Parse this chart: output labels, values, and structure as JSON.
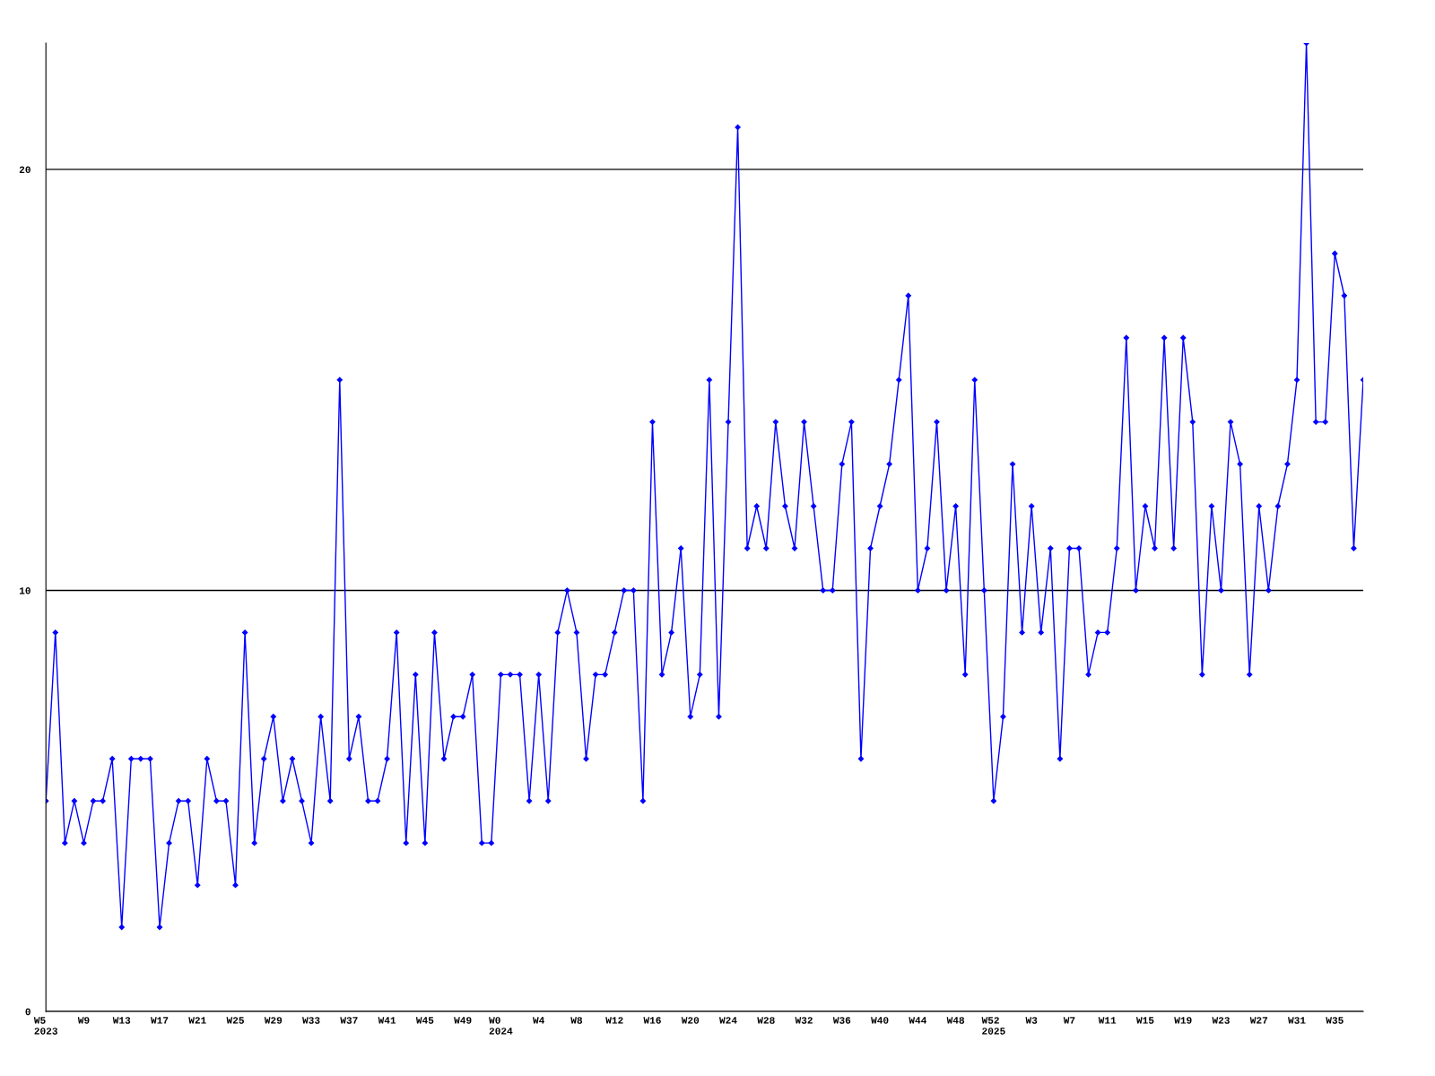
{
  "chart_data": {
    "type": "line",
    "categories": [
      "W5\n2023",
      null,
      null,
      null,
      "W9",
      null,
      null,
      null,
      "W13",
      null,
      null,
      null,
      "W17",
      null,
      null,
      null,
      "W21",
      null,
      null,
      null,
      "W25",
      null,
      null,
      null,
      "W29",
      null,
      null,
      null,
      "W33",
      null,
      null,
      null,
      "W37",
      null,
      null,
      null,
      "W41",
      null,
      null,
      null,
      "W45",
      null,
      null,
      null,
      "W49",
      null,
      null,
      null,
      "W0\n2024",
      null,
      null,
      null,
      "W4",
      null,
      null,
      null,
      "W8",
      null,
      null,
      null,
      "W12",
      null,
      null,
      null,
      "W16",
      null,
      null,
      null,
      "W20",
      null,
      null,
      null,
      "W24",
      null,
      null,
      null,
      "W28",
      null,
      null,
      null,
      "W32",
      null,
      null,
      null,
      "W36",
      null,
      null,
      null,
      "W40",
      null,
      null,
      null,
      "W44",
      null,
      null,
      null,
      "W48",
      null,
      null,
      null,
      "W52\n2025",
      null,
      null,
      null,
      "W3",
      null,
      null,
      null,
      "W7",
      null,
      null,
      null,
      "W11",
      null,
      null,
      null,
      "W15",
      null,
      null,
      null,
      "W19",
      null,
      null,
      null,
      "W23",
      null,
      null,
      null,
      "W27",
      null,
      null,
      null,
      "W31",
      null,
      null,
      null,
      "W35",
      null,
      null,
      null
    ],
    "series": [
      {
        "color": "#0000ff",
        "values": [
          5,
          9,
          4,
          5,
          4,
          5,
          5,
          6,
          2,
          6,
          6,
          6,
          2,
          4,
          5,
          5,
          3,
          6,
          5,
          5,
          3,
          9,
          4,
          6,
          7,
          5,
          6,
          5,
          4,
          7,
          5,
          15,
          6,
          7,
          5,
          5,
          6,
          9,
          4,
          8,
          4,
          9,
          6,
          7,
          7,
          8,
          4,
          4,
          8,
          8,
          8,
          5,
          8,
          5,
          9,
          10,
          9,
          6,
          8,
          8,
          9,
          10,
          10,
          5,
          14,
          8,
          9,
          11,
          7,
          8,
          15,
          7,
          14,
          21,
          11,
          12,
          11,
          14,
          12,
          11,
          14,
          12,
          10,
          10,
          13,
          14,
          6,
          11,
          12,
          13,
          15,
          17,
          10,
          11,
          14,
          10,
          12,
          8,
          15,
          10,
          5,
          7,
          13,
          9,
          12,
          9,
          11,
          6,
          11,
          11,
          8,
          9,
          9,
          11,
          16,
          10,
          12,
          11,
          16,
          11,
          16,
          14,
          8,
          12,
          10,
          14,
          13,
          8,
          12,
          10,
          12,
          13,
          15,
          23,
          14,
          14,
          18,
          17,
          11,
          15
        ]
      }
    ],
    "ylim": [
      0,
      23
    ],
    "yticks": [
      0,
      10,
      20
    ],
    "grid": "y",
    "legend": false,
    "marker": "diamond",
    "line_style": "solid"
  }
}
